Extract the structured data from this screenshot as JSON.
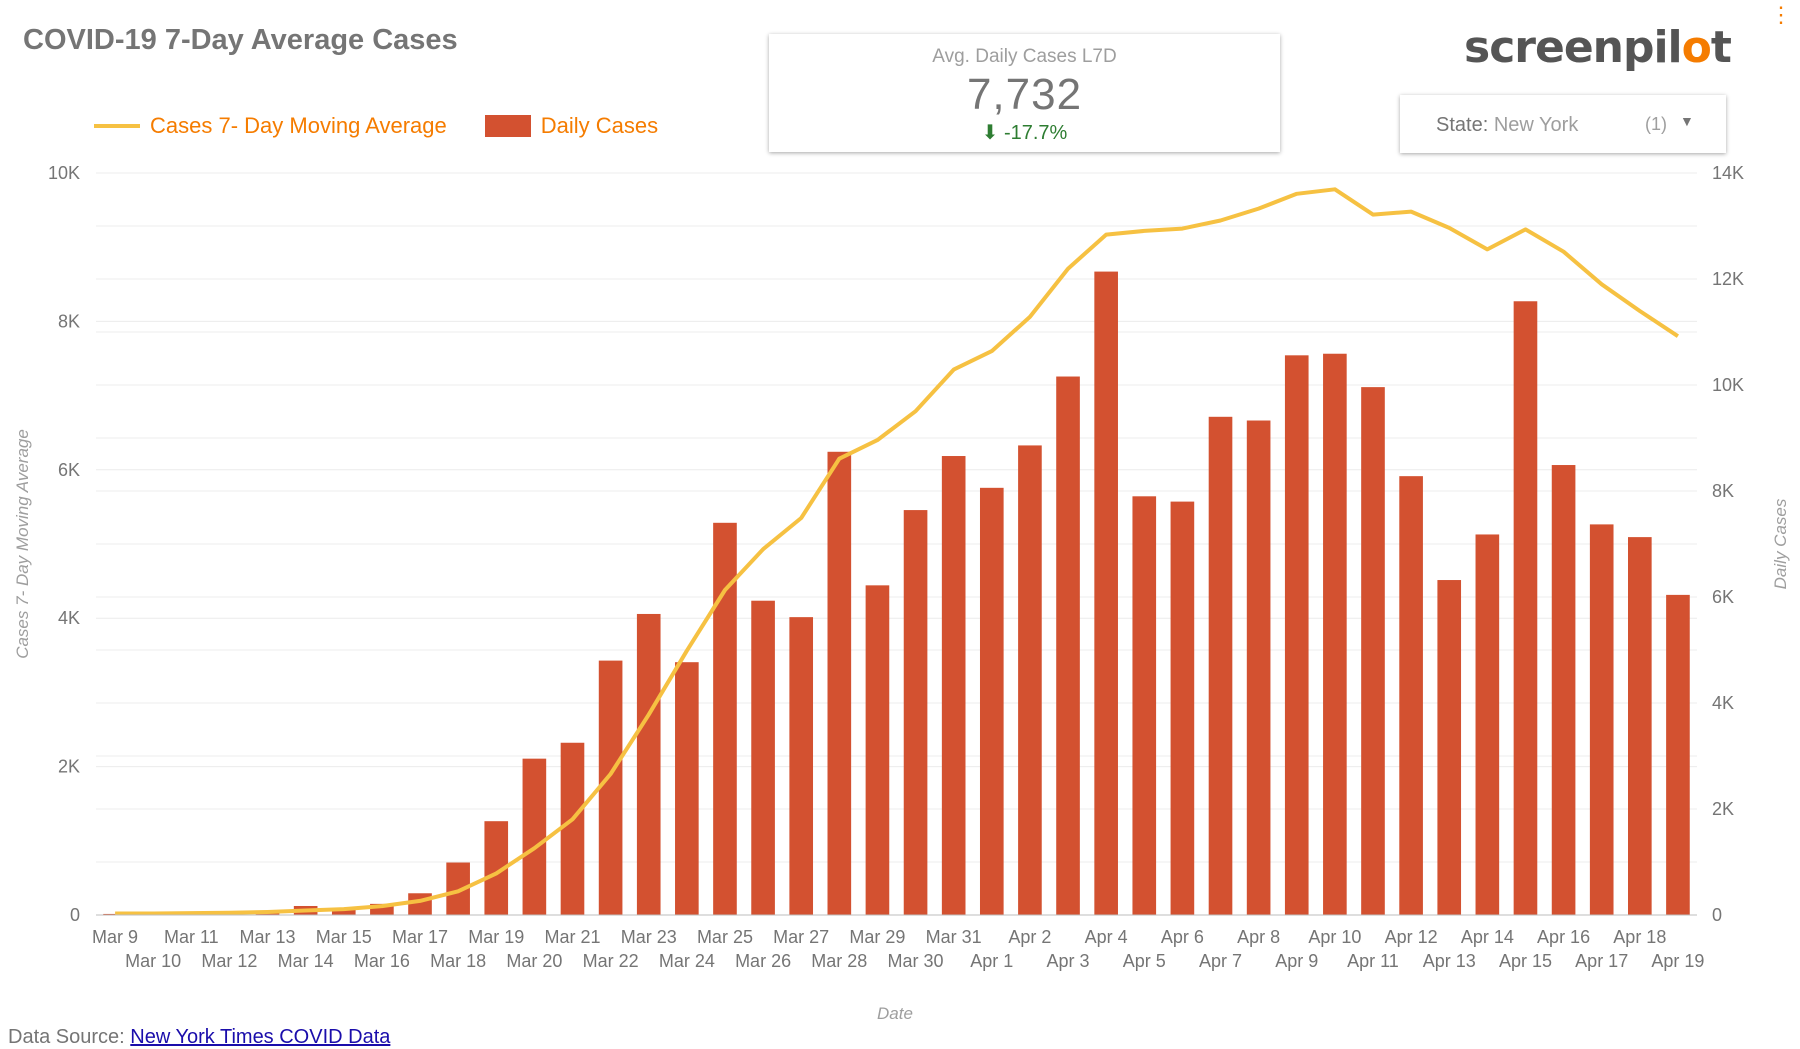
{
  "title": "COVID-19 7-Day Average Cases",
  "kpi": {
    "label": "Avg. Daily Cases L7D",
    "value": "7,732",
    "delta": "-17.7%",
    "delta_icon": "down-arrow-icon"
  },
  "logo": {
    "text_before": "screenpil",
    "text_o": "o",
    "text_after": "t"
  },
  "filter": {
    "label": "State",
    "value": "New York",
    "count": "(1)"
  },
  "legend": {
    "line": "Cases 7- Day Moving Average",
    "bar": "Daily Cases"
  },
  "source": {
    "prefix": "Data Source:",
    "link": "New York Times COVID Data"
  },
  "colors": {
    "line": "#f6c142",
    "bar": "#d35130",
    "accent": "#f57c00"
  },
  "chart_data": {
    "type": "bar",
    "xlabel": "Date",
    "ylabel_left": "Cases 7- Day Moving Average",
    "ylabel_right": "Daily Cases",
    "ylim_left": [
      0,
      10000
    ],
    "ylim_right": [
      0,
      14000
    ],
    "left_ticks": [
      "0",
      "2K",
      "4K",
      "6K",
      "8K",
      "10K"
    ],
    "right_ticks": [
      "0",
      "2K",
      "4K",
      "6K",
      "8K",
      "10K",
      "12K",
      "14K"
    ],
    "categories": [
      "Mar 9",
      "Mar 10",
      "Mar 11",
      "Mar 12",
      "Mar 13",
      "Mar 14",
      "Mar 15",
      "Mar 16",
      "Mar 17",
      "Mar 18",
      "Mar 19",
      "Mar 20",
      "Mar 21",
      "Mar 22",
      "Mar 23",
      "Mar 24",
      "Mar 25",
      "Mar 26",
      "Mar 27",
      "Mar 28",
      "Mar 29",
      "Mar 30",
      "Mar 31",
      "Apr 1",
      "Apr 2",
      "Apr 3",
      "Apr 4",
      "Apr 5",
      "Apr 6",
      "Apr 7",
      "Apr 8",
      "Apr 9",
      "Apr 10",
      "Apr 11",
      "Apr 12",
      "Apr 13",
      "Apr 14",
      "Apr 15",
      "Apr 16",
      "Apr 17",
      "Apr 18",
      "Apr 19"
    ],
    "series": [
      {
        "name": "Daily Cases",
        "axis": "right",
        "type": "bar",
        "values": [
          20,
          10,
          30,
          40,
          50,
          170,
          100,
          210,
          410,
          990,
          1770,
          2950,
          3250,
          4800,
          5680,
          4770,
          7400,
          5930,
          5620,
          8740,
          6220,
          7640,
          8660,
          8060,
          8860,
          10160,
          12140,
          7900,
          7800,
          9400,
          9330,
          10560,
          10590,
          9960,
          8280,
          6320,
          7180,
          11580,
          8490,
          7370,
          7130,
          6040
        ]
      },
      {
        "name": "Cases 7- Day Moving Average",
        "axis": "left",
        "type": "line",
        "values": [
          20,
          20,
          25,
          30,
          40,
          60,
          80,
          120,
          190,
          320,
          560,
          900,
          1290,
          1900,
          2700,
          3560,
          4380,
          4930,
          5350,
          6150,
          6400,
          6790,
          7350,
          7600,
          8060,
          8710,
          9170,
          9220,
          9250,
          9360,
          9520,
          9720,
          9780,
          9440,
          9480,
          9260,
          8970,
          9240,
          8940,
          8500,
          8140,
          7800
        ]
      }
    ]
  }
}
